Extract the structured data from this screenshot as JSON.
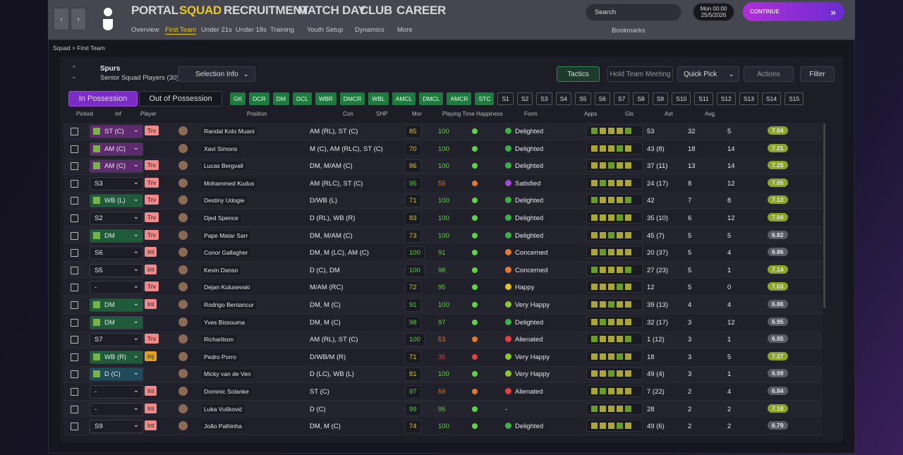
{
  "nav": {
    "main_tabs": [
      "PORTAL",
      "SQUAD",
      "RECRUITMENT",
      "MATCH DAY",
      "CLUB",
      "CAREER"
    ],
    "sub_tabs": [
      "Overview",
      "First Team",
      "Under 21s",
      "Under 18s",
      "Training",
      "Youth Setup",
      "Dynamics",
      "More"
    ],
    "search": "Search",
    "day": "Mon 00:00",
    "date": "25/5/2026",
    "continue": "CONTINUE",
    "bookmarks": "Bookmarks"
  },
  "breadcrumb": [
    "Squad",
    "First Team"
  ],
  "team": {
    "name": "Spurs",
    "subtitle": "Senior Squad Players (30)",
    "selection_info": "Selection Info"
  },
  "actions": {
    "tactics": "Tactics",
    "meeting": "Hold Team Meeting",
    "quick_pick": "Quick Pick",
    "actions": "Actions",
    "filter": "Filter"
  },
  "possession": {
    "in": "In Possession",
    "out": "Out of Possession"
  },
  "positions": [
    "GK",
    "DCR",
    "DM",
    "DCL",
    "WBR",
    "DMCR",
    "WBL",
    "AMCL",
    "DMCL",
    "AMCR",
    "STC",
    "S1",
    "S2",
    "S3",
    "S4",
    "S5",
    "S6",
    "S7",
    "S8",
    "S9",
    "S10",
    "S11",
    "S12",
    "S13",
    "S14",
    "S15"
  ],
  "table": {
    "columns": [
      "Picked",
      "Inf",
      "Player",
      "Position",
      "Con",
      "SHP",
      "Mor",
      "Playing Time Happiness",
      "Form",
      "Apps",
      "Gls",
      "Ast",
      "Avg."
    ],
    "rows": [
      {
        "picked": "ST (C)",
        "picked_color": "#5e2a6e",
        "inf": "Trv",
        "inf_color": "#f08a8a",
        "player": "Randal Kolo Muani",
        "position": "AM (RL), ST (C)",
        "con": 85,
        "shp": 100,
        "happiness": "Delighted",
        "happiness_color": "#3cb04a",
        "apps": "53",
        "gls": 32,
        "ast": 5,
        "avg": 7.04
      },
      {
        "picked": "AM (C)",
        "picked_color": "#5e2a6e",
        "inf": null,
        "inf_color": null,
        "player": "Xavi Simons",
        "position": "M (C), AM (RLC), ST (C)",
        "con": 70,
        "shp": 100,
        "happiness": "Delighted",
        "happiness_color": "#3cb04a",
        "apps": "43 (8)",
        "gls": 18,
        "ast": 14,
        "avg": 7.21
      },
      {
        "picked": "AM (C)",
        "picked_color": "#5e2a6e",
        "inf": "Trv",
        "inf_color": "#f08a8a",
        "player": "Lucas Bergvall",
        "position": "DM, M/AM (C)",
        "con": 86,
        "shp": 100,
        "happiness": "Delighted",
        "happiness_color": "#3cb04a",
        "apps": "37 (11)",
        "gls": 13,
        "ast": 14,
        "avg": 7.25
      },
      {
        "picked": "S3",
        "picked_color": null,
        "inf": "Trv",
        "inf_color": "#f08a8a",
        "player": "Mohammed Kudus",
        "position": "AM (RLC), ST (C)",
        "con": 95,
        "shp": 55,
        "happiness": "Satisfied",
        "happiness_color": "#a04ad0",
        "apps": "24 (17)",
        "gls": 8,
        "ast": 12,
        "avg": 7.05
      },
      {
        "picked": "WB (L)",
        "picked_color": "#1f5a3a",
        "inf": "Trv",
        "inf_color": "#f08a8a",
        "player": "Destiny Udogie",
        "position": "D/WB (L)",
        "con": 71,
        "shp": 100,
        "happiness": "Delighted",
        "happiness_color": "#3cb04a",
        "apps": "42",
        "gls": 7,
        "ast": 8,
        "avg": 7.13
      },
      {
        "picked": "S2",
        "picked_color": null,
        "inf": "Trv",
        "inf_color": "#f08a8a",
        "player": "Djed Spence",
        "position": "D (RL), WB (R)",
        "con": 83,
        "shp": 100,
        "happiness": "Delighted",
        "happiness_color": "#3cb04a",
        "apps": "35 (10)",
        "gls": 6,
        "ast": 12,
        "avg": 7.04
      },
      {
        "picked": "DM",
        "picked_color": "#1f5a3a",
        "inf": "Trv",
        "inf_color": "#f08a8a",
        "player": "Pape Matar Sarr",
        "position": "DM, M/AM (C)",
        "con": 73,
        "shp": 100,
        "happiness": "Delighted",
        "happiness_color": "#3cb04a",
        "apps": "45 (7)",
        "gls": 5,
        "ast": 5,
        "avg": 6.82
      },
      {
        "picked": "S6",
        "picked_color": null,
        "inf": "Int",
        "inf_color": "#f08a8a",
        "player": "Conor Gallagher",
        "position": "DM, M (LC), AM (C)",
        "con": 100,
        "shp": 91,
        "happiness": "Concerned",
        "happiness_color": "#e07a3a",
        "apps": "20 (37)",
        "gls": 5,
        "ast": 4,
        "avg": 6.86
      },
      {
        "picked": "S5",
        "picked_color": null,
        "inf": "Int",
        "inf_color": "#f08a8a",
        "player": "Kevin Danso",
        "position": "D (C), DM",
        "con": 100,
        "shp": 98,
        "happiness": "Concerned",
        "happiness_color": "#e07a3a",
        "apps": "27 (23)",
        "gls": 5,
        "ast": 1,
        "avg": 7.14
      },
      {
        "picked": "-",
        "picked_color": null,
        "inf": "Trv",
        "inf_color": "#f08a8a",
        "player": "Dejan Kulusevski",
        "position": "M/AM (RC)",
        "con": 72,
        "shp": 95,
        "happiness": "Happy",
        "happiness_color": "#e0c030",
        "apps": "12",
        "gls": 5,
        "ast": 0,
        "avg": 7.03
      },
      {
        "picked": "DM",
        "picked_color": "#1f5a3a",
        "inf": "Int",
        "inf_color": "#f08a8a",
        "player": "Rodrigo Bentancur",
        "position": "DM, M (C)",
        "con": 91,
        "shp": 100,
        "happiness": "Very Happy",
        "happiness_color": "#8ac830",
        "apps": "39 (13)",
        "gls": 4,
        "ast": 4,
        "avg": 6.86
      },
      {
        "picked": "DM",
        "picked_color": "#1f5a3a",
        "inf": null,
        "inf_color": null,
        "player": "Yves Bissouma",
        "position": "DM, M (C)",
        "con": 98,
        "shp": 97,
        "happiness": "Delighted",
        "happiness_color": "#3cb04a",
        "apps": "32 (17)",
        "gls": 3,
        "ast": 12,
        "avg": 6.95
      },
      {
        "picked": "S7",
        "picked_color": null,
        "inf": "Trv",
        "inf_color": "#f08a8a",
        "player": "Richarlison",
        "position": "AM (RL), ST (C)",
        "con": 100,
        "shp": 53,
        "happiness": "Alienated",
        "happiness_color": "#e04040",
        "apps": "1 (12)",
        "gls": 3,
        "ast": 1,
        "avg": 6.85
      },
      {
        "picked": "WB (R)",
        "picked_color": "#1f5a3a",
        "inf": "Inj",
        "inf_color": "#e0a020",
        "player": "Pedro Porro",
        "position": "D/WB/M (R)",
        "con": 71,
        "shp": 35,
        "happiness": "Very Happy",
        "happiness_color": "#8ac830",
        "apps": "18",
        "gls": 3,
        "ast": 5,
        "avg": 7.27
      },
      {
        "picked": "D (C)",
        "picked_color": "#1f4a5a",
        "inf": null,
        "inf_color": null,
        "player": "Micky van de Ven",
        "position": "D (LC), WB (L)",
        "con": 81,
        "shp": 100,
        "happiness": "Very Happy",
        "happiness_color": "#8ac830",
        "apps": "49 (4)",
        "gls": 3,
        "ast": 1,
        "avg": 6.99
      },
      {
        "picked": "-",
        "picked_color": null,
        "inf": "Int",
        "inf_color": "#f08a8a",
        "player": "Dominic Solanke",
        "position": "ST (C)",
        "con": 97,
        "shp": 59,
        "happiness": "Alienated",
        "happiness_color": "#e04040",
        "apps": "7 (22)",
        "gls": 2,
        "ast": 4,
        "avg": 6.84
      },
      {
        "picked": "-",
        "picked_color": null,
        "inf": "Int",
        "inf_color": "#f08a8a",
        "player": "Luka Vušković",
        "position": "D (C)",
        "con": 99,
        "shp": 95,
        "happiness": "-",
        "happiness_color": null,
        "apps": "28",
        "gls": 2,
        "ast": 2,
        "avg": 7.18
      },
      {
        "picked": "S9",
        "picked_color": null,
        "inf": "Int",
        "inf_color": "#f08a8a",
        "player": "João Palhinha",
        "position": "DM, M (C)",
        "con": 74,
        "shp": 100,
        "happiness": "Delighted",
        "happiness_color": "#3cb04a",
        "apps": "49 (6)",
        "gls": 2,
        "ast": 2,
        "avg": 6.79
      }
    ]
  }
}
